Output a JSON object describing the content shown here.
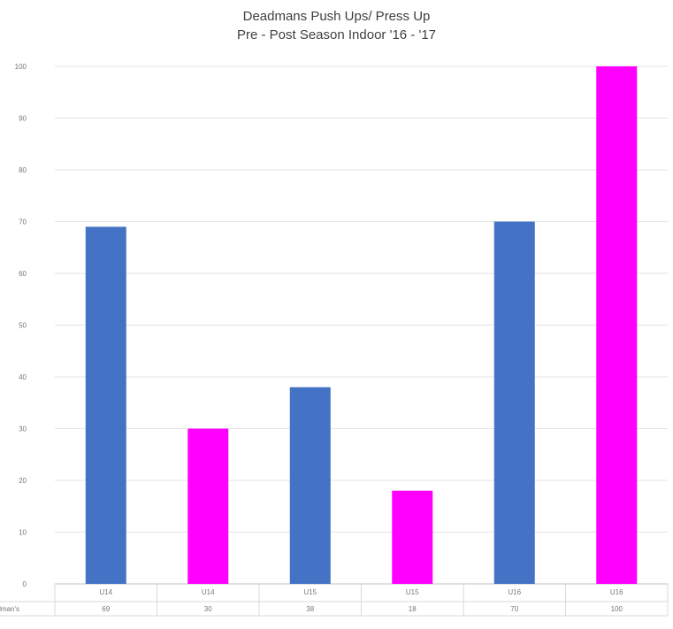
{
  "chart_data": {
    "type": "bar",
    "title": [
      "Deadmans Push Ups/ Press Up",
      "Pre - Post Season Indoor '16 - '17"
    ],
    "categories": [
      "U14",
      "U14",
      "U15",
      "U15",
      "U16",
      "U16"
    ],
    "series": [
      {
        "name": "Deadman's",
        "values": [
          69,
          30,
          38,
          18,
          70,
          100
        ],
        "colors": [
          "#4472c4",
          "#ff00ff",
          "#4472c4",
          "#ff00ff",
          "#4472c4",
          "#ff00ff"
        ]
      }
    ],
    "ylim": [
      0,
      100
    ],
    "yticks": [
      0,
      10,
      20,
      30,
      40,
      50,
      60,
      70,
      80,
      90,
      100
    ],
    "grid": true,
    "legend": "data table below axis",
    "data_table": {
      "row_label": "Deadman's",
      "values": [
        "69",
        "30",
        "38",
        "18",
        "70",
        "100"
      ]
    }
  }
}
